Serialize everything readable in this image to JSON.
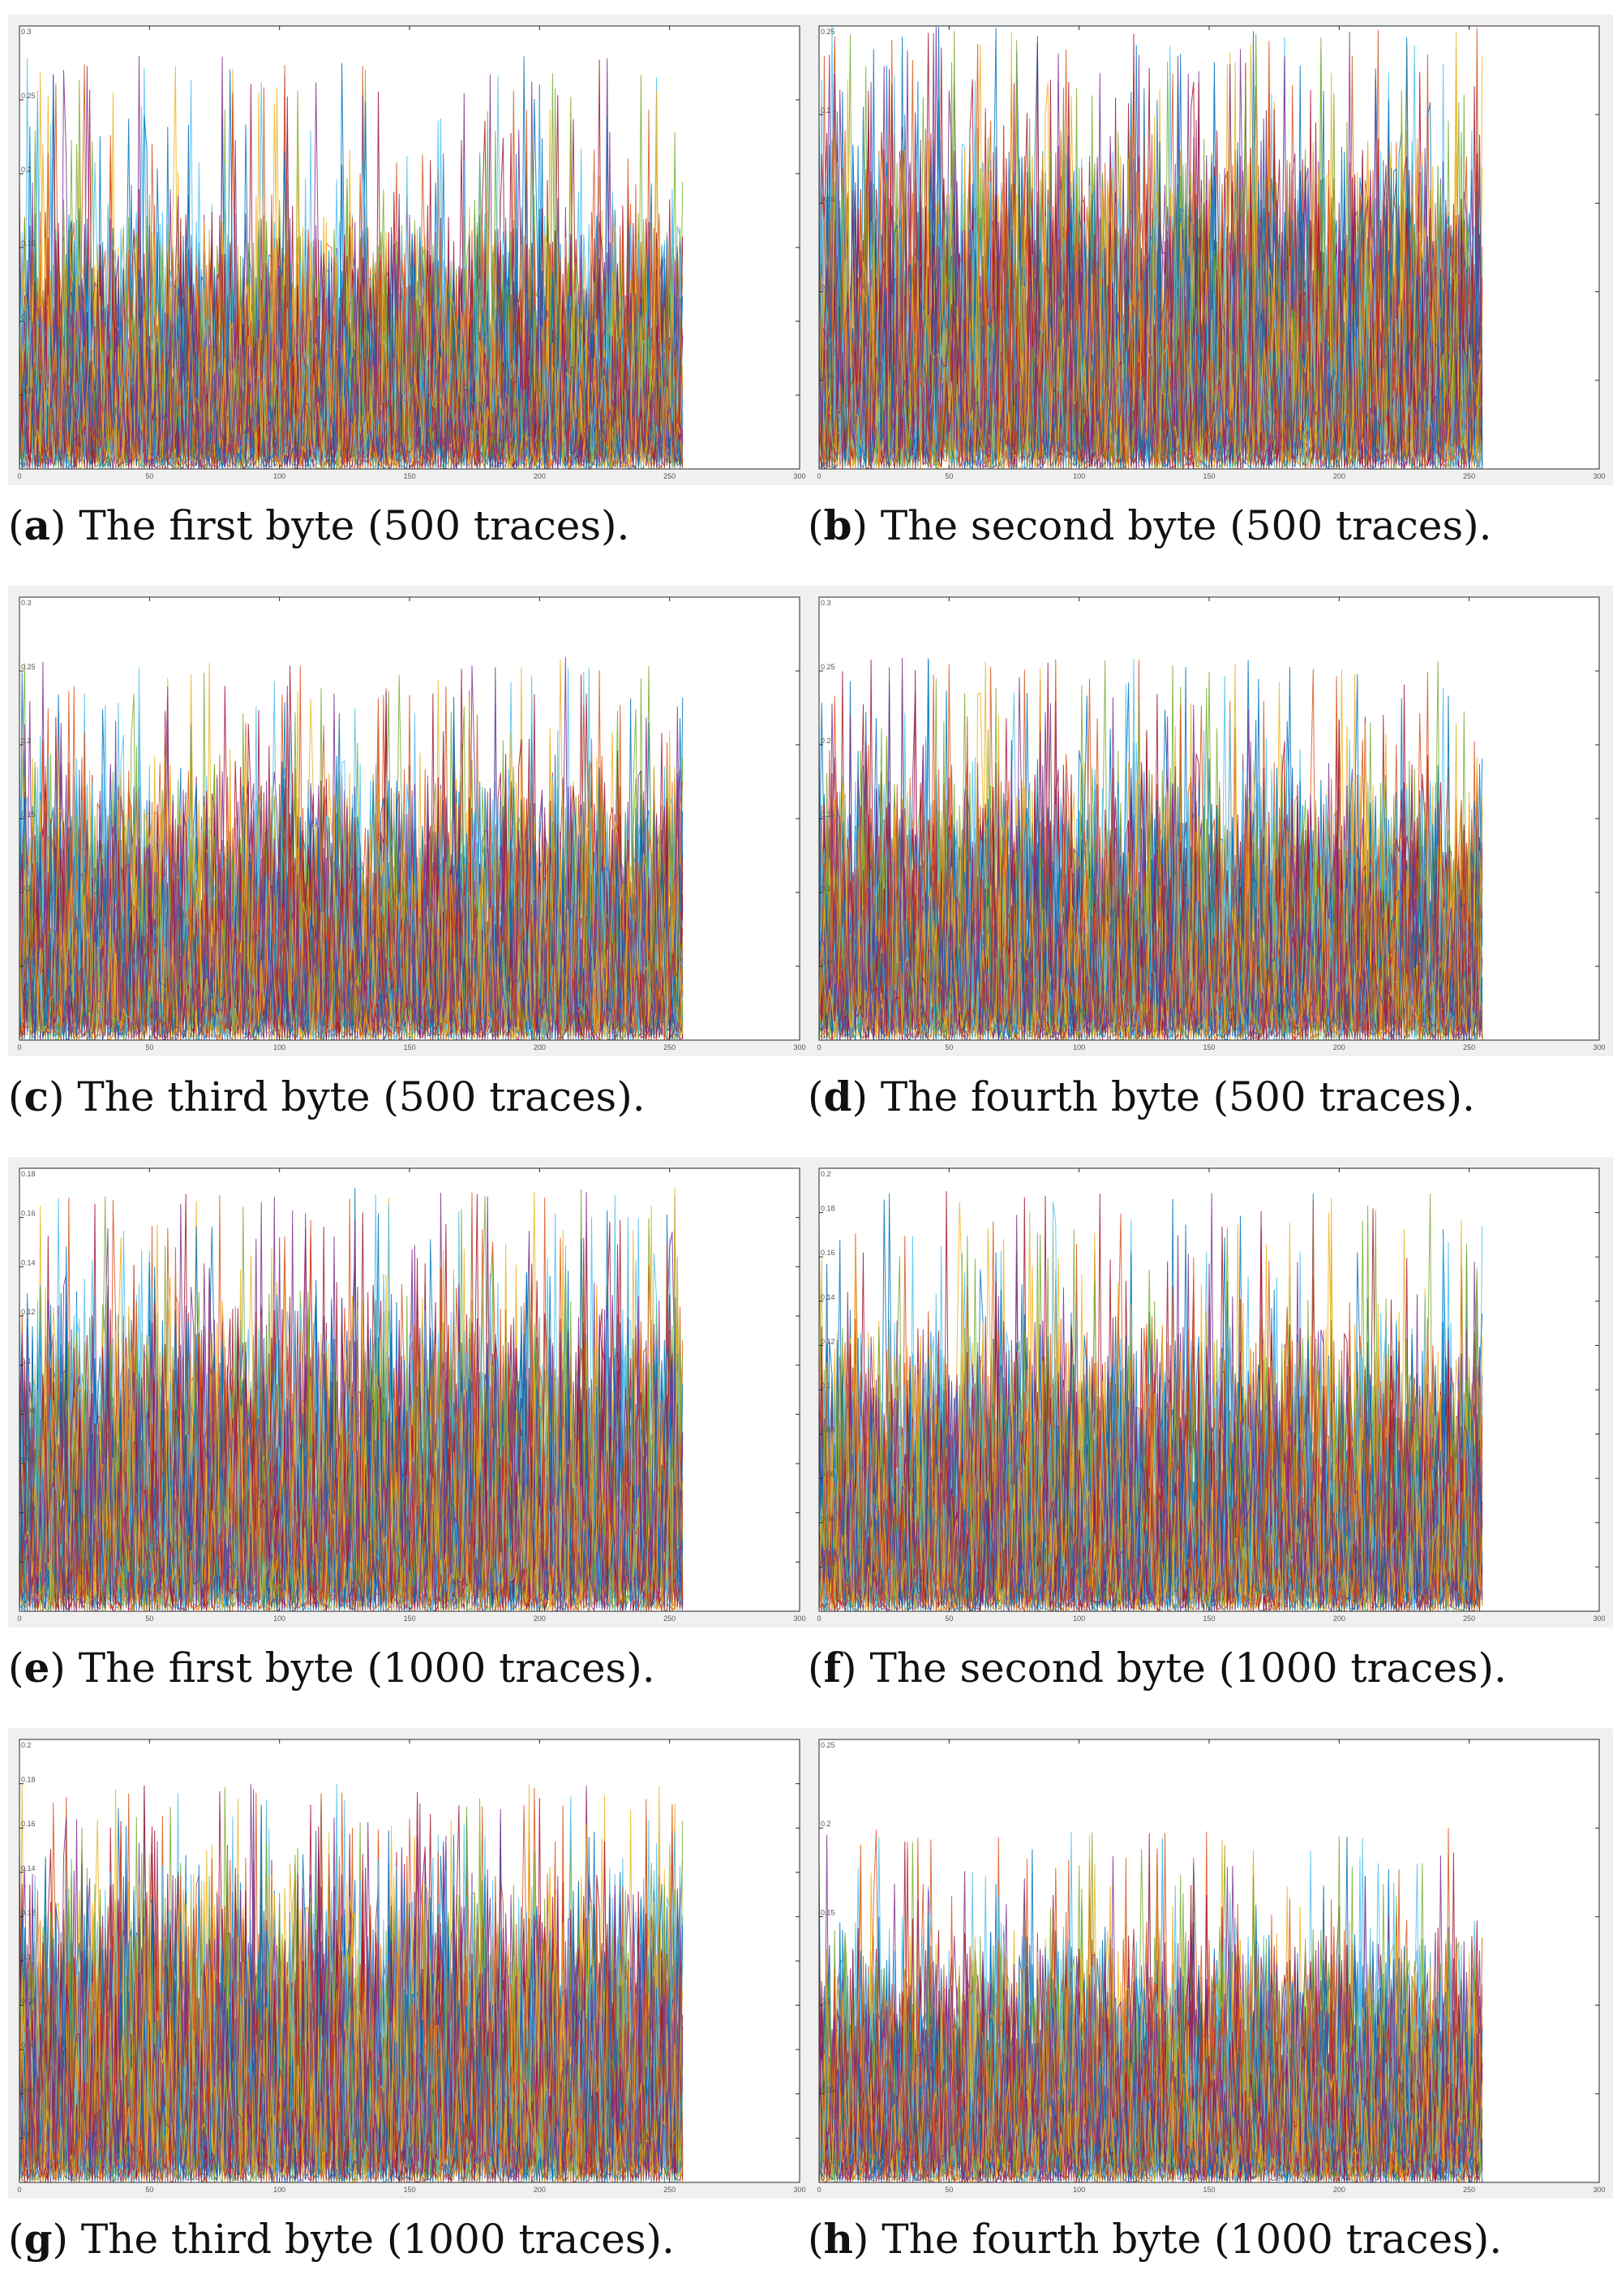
{
  "figure": {
    "panels": [
      {
        "id": "a",
        "letter": "a",
        "caption": "The first byte (500 traces).",
        "chart_index": 0
      },
      {
        "id": "b",
        "letter": "b",
        "caption": "The second byte (500 traces).",
        "chart_index": 1
      },
      {
        "id": "c",
        "letter": "c",
        "caption": "The third byte (500 traces).",
        "chart_index": 2
      },
      {
        "id": "d",
        "letter": "d",
        "caption": "The fourth byte (500 traces).",
        "chart_index": 3
      },
      {
        "id": "e",
        "letter": "e",
        "caption": "The first byte (1000 traces).",
        "chart_index": 4
      },
      {
        "id": "f",
        "letter": "f",
        "caption": "The second byte (1000 traces).",
        "chart_index": 5
      },
      {
        "id": "g",
        "letter": "g",
        "caption": "The third byte (1000 traces).",
        "chart_index": 6
      },
      {
        "id": "h",
        "letter": "h",
        "caption": "The fourth byte (1000 traces).",
        "chart_index": 7
      }
    ]
  },
  "chart_data": [
    {
      "type": "line",
      "title": "",
      "xlabel": "",
      "ylabel": "",
      "x_range": [
        0,
        255
      ],
      "xlim": [
        0,
        300
      ],
      "ylim": [
        0,
        0.3
      ],
      "xticks": [
        0,
        50,
        100,
        150,
        200,
        250,
        300
      ],
      "xtick_labels": [
        "0",
        "50",
        "100",
        "150",
        "200",
        "250",
        "300"
      ],
      "yticks": [
        0,
        0.05,
        0.1,
        0.15,
        0.2,
        0.25,
        0.3
      ],
      "ytick_labels": [
        "0",
        "0.05",
        "0.1",
        "0.15",
        "0.2",
        "0.25",
        "0.3"
      ],
      "series_count": 500,
      "typical_max": 0.16,
      "peak_max": 0.28,
      "grid": false
    },
    {
      "type": "line",
      "title": "",
      "xlabel": "",
      "ylabel": "",
      "x_range": [
        0,
        255
      ],
      "xlim": [
        0,
        300
      ],
      "ylim": [
        0,
        0.25
      ],
      "xticks": [
        0,
        50,
        100,
        150,
        200,
        250,
        300
      ],
      "xtick_labels": [
        "0",
        "50",
        "100",
        "150",
        "200",
        "250",
        "300"
      ],
      "yticks": [
        0,
        0.05,
        0.1,
        0.15,
        0.2,
        0.25
      ],
      "ytick_labels": [
        "0",
        "0.05",
        "0.1",
        "0.15",
        "0.2",
        "0.25"
      ],
      "series_count": 500,
      "typical_max": 0.17,
      "peak_max": 0.25,
      "grid": false
    },
    {
      "type": "line",
      "title": "",
      "xlabel": "",
      "ylabel": "",
      "x_range": [
        0,
        255
      ],
      "xlim": [
        0,
        300
      ],
      "ylim": [
        0,
        0.3
      ],
      "xticks": [
        0,
        50,
        100,
        150,
        200,
        250,
        300
      ],
      "xtick_labels": [
        "0",
        "50",
        "100",
        "150",
        "200",
        "250",
        "300"
      ],
      "yticks": [
        0,
        0.05,
        0.1,
        0.15,
        0.2,
        0.25,
        0.3
      ],
      "ytick_labels": [
        "0",
        "0.05",
        "0.1",
        "0.15",
        "0.2",
        "0.25",
        "0.3"
      ],
      "series_count": 500,
      "typical_max": 0.17,
      "peak_max": 0.26,
      "grid": false
    },
    {
      "type": "line",
      "title": "",
      "xlabel": "",
      "ylabel": "",
      "x_range": [
        0,
        255
      ],
      "xlim": [
        0,
        300
      ],
      "ylim": [
        0,
        0.3
      ],
      "xticks": [
        0,
        50,
        100,
        150,
        200,
        250,
        300
      ],
      "xtick_labels": [
        "0",
        "50",
        "100",
        "150",
        "200",
        "250",
        "300"
      ],
      "yticks": [
        0,
        0.05,
        0.1,
        0.15,
        0.2,
        0.25,
        0.3
      ],
      "ytick_labels": [
        "0",
        "0.05",
        "0.1",
        "0.15",
        "0.2",
        "0.25",
        "0.3"
      ],
      "series_count": 500,
      "typical_max": 0.17,
      "peak_max": 0.26,
      "grid": false
    },
    {
      "type": "line",
      "title": "",
      "xlabel": "",
      "ylabel": "",
      "x_range": [
        0,
        255
      ],
      "xlim": [
        0,
        300
      ],
      "ylim": [
        0,
        0.18
      ],
      "xticks": [
        0,
        50,
        100,
        150,
        200,
        250,
        300
      ],
      "xtick_labels": [
        "0",
        "50",
        "100",
        "150",
        "200",
        "250",
        "300"
      ],
      "yticks": [
        0,
        0.02,
        0.04,
        0.06,
        0.08,
        0.1,
        0.12,
        0.14,
        0.16,
        0.18
      ],
      "ytick_labels": [
        "0",
        "0.02",
        "0.04",
        "0.06",
        "0.08",
        "0.1",
        "0.12",
        "0.14",
        "0.16",
        "0.18"
      ],
      "series_count": 1000,
      "typical_max": 0.12,
      "peak_max": 0.172,
      "grid": false
    },
    {
      "type": "line",
      "title": "",
      "xlabel": "",
      "ylabel": "",
      "x_range": [
        0,
        255
      ],
      "xlim": [
        0,
        300
      ],
      "ylim": [
        0,
        0.2
      ],
      "xticks": [
        0,
        50,
        100,
        150,
        200,
        250,
        300
      ],
      "xtick_labels": [
        "0",
        "50",
        "100",
        "150",
        "200",
        "250",
        "300"
      ],
      "yticks": [
        0,
        0.02,
        0.04,
        0.06,
        0.08,
        0.1,
        0.12,
        0.14,
        0.16,
        0.18,
        0.2
      ],
      "ytick_labels": [
        "0",
        "0.02",
        "0.04",
        "0.06",
        "0.08",
        "0.1",
        "0.12",
        "0.14",
        "0.16",
        "0.18",
        "0.2"
      ],
      "series_count": 1000,
      "typical_max": 0.12,
      "peak_max": 0.19,
      "grid": false
    },
    {
      "type": "line",
      "title": "",
      "xlabel": "",
      "ylabel": "",
      "x_range": [
        0,
        255
      ],
      "xlim": [
        0,
        300
      ],
      "ylim": [
        0,
        0.2
      ],
      "xticks": [
        0,
        50,
        100,
        150,
        200,
        250,
        300
      ],
      "xtick_labels": [
        "0",
        "50",
        "100",
        "150",
        "200",
        "250",
        "300"
      ],
      "yticks": [
        0,
        0.02,
        0.04,
        0.06,
        0.08,
        0.1,
        0.12,
        0.14,
        0.16,
        0.18,
        0.2
      ],
      "ytick_labels": [
        "0",
        "0.02",
        "0.04",
        "0.06",
        "0.08",
        "0.1",
        "0.12",
        "0.14",
        "0.16",
        "0.18",
        "0.2"
      ],
      "series_count": 1000,
      "typical_max": 0.13,
      "peak_max": 0.18,
      "grid": false
    },
    {
      "type": "line",
      "title": "",
      "xlabel": "",
      "ylabel": "",
      "x_range": [
        0,
        255
      ],
      "xlim": [
        0,
        300
      ],
      "ylim": [
        0,
        0.25
      ],
      "xticks": [
        0,
        50,
        100,
        150,
        200,
        250,
        300
      ],
      "xtick_labels": [
        "0",
        "50",
        "100",
        "150",
        "200",
        "250",
        "300"
      ],
      "yticks": [
        0,
        0.05,
        0.1,
        0.15,
        0.2,
        0.25
      ],
      "ytick_labels": [
        "0",
        "0.05",
        "0.1",
        "0.15",
        "0.2",
        "0.25"
      ],
      "series_count": 1000,
      "typical_max": 0.13,
      "peak_max": 0.2,
      "grid": false
    }
  ],
  "colors": {
    "trace_palette": [
      "#0072BD",
      "#D95319",
      "#EDB120",
      "#7E2F8E",
      "#77AC30",
      "#4DBEEE",
      "#A2142F"
    ],
    "axes": "#262626",
    "frame_background": "#f0f0f0"
  }
}
